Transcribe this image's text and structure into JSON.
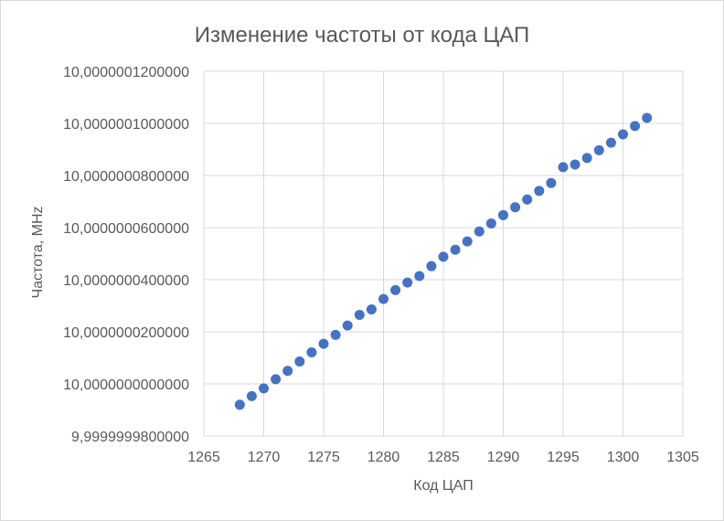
{
  "chart_data": {
    "type": "scatter",
    "title": "Изменение частоты от кода ЦАП",
    "xlabel": "Код ЦАП",
    "ylabel": "Частота, MHz",
    "xlim": [
      1265,
      1305
    ],
    "ylim": [
      9.99999998,
      10.00000012
    ],
    "x_ticks": [
      1265,
      1270,
      1275,
      1280,
      1285,
      1290,
      1295,
      1300,
      1305
    ],
    "x_tick_labels": [
      "1265",
      "1270",
      "1275",
      "1280",
      "1285",
      "1290",
      "1295",
      "1300",
      "1305"
    ],
    "y_ticks": [
      9.99999998,
      10.0,
      10.00000002,
      10.00000004,
      10.00000006,
      10.00000008,
      10.0000001,
      10.00000012
    ],
    "y_tick_labels": [
      "9,9999999800000",
      "10,0000000000000",
      "10,0000000200000",
      "10,0000000400000",
      "10,0000000600000",
      "10,0000000800000",
      "10,0000001000000",
      "10,0000001200000"
    ],
    "grid": true,
    "legend": "none",
    "marker_color": "#4472c4",
    "gridline_color": "#d9d9d9",
    "series": [
      {
        "x": [
          1268,
          1269,
          1270,
          1271,
          1272,
          1273,
          1274,
          1275,
          1276,
          1277,
          1278,
          1279,
          1280,
          1281,
          1282,
          1283,
          1284,
          1285,
          1286,
          1287,
          1288,
          1289,
          1290,
          1291,
          1292,
          1293,
          1294,
          1295,
          1296,
          1297,
          1298,
          1299,
          1300,
          1301,
          1302
        ],
        "y": [
          9.999999992,
          9.9999999953,
          9.9999999983,
          10.0000000018,
          10.000000005,
          10.0000000086,
          10.0000000121,
          10.0000000154,
          10.0000000188,
          10.0000000224,
          10.0000000265,
          10.0000000286,
          10.0000000326,
          10.000000036,
          10.0000000389,
          10.0000000414,
          10.0000000452,
          10.0000000488,
          10.0000000515,
          10.0000000547,
          10.0000000585,
          10.0000000616,
          10.0000000648,
          10.0000000678,
          10.0000000708,
          10.0000000741,
          10.0000000771,
          10.0000000832,
          10.0000000842,
          10.0000000867,
          10.0000000897,
          10.0000000926,
          10.0000000958,
          10.000000099,
          10.0000001021
        ]
      }
    ]
  }
}
